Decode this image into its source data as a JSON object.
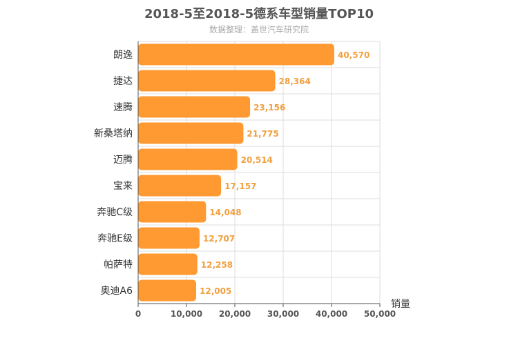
{
  "title": "2018-5至2018-5德系车型销量TOP10",
  "subtitle": "数据整理：盖世汽车研究院",
  "colors": {
    "bar": "#ff9a33",
    "label": "#f0a040",
    "grid": "#dddddd",
    "axis": "#555555"
  },
  "chart_data": {
    "type": "bar",
    "orientation": "horizontal",
    "title": "2018-5至2018-5德系车型销量TOP10",
    "subtitle": "数据整理：盖世汽车研究院",
    "xlabel": "销量",
    "ylabel": "",
    "categories": [
      "朗逸",
      "捷达",
      "速腾",
      "新桑塔纳",
      "迈腾",
      "宝来",
      "奔驰C级",
      "奔驰E级",
      "帕萨特",
      "奥迪A6"
    ],
    "values": [
      40570,
      28364,
      23156,
      21775,
      20514,
      17157,
      14048,
      12707,
      12258,
      12005
    ],
    "value_labels": [
      "40,570",
      "28,364",
      "23,156",
      "21,775",
      "20,514",
      "17,157",
      "14,048",
      "12,707",
      "12,258",
      "12,005"
    ],
    "xlim": [
      0,
      50000
    ],
    "xticks": [
      0,
      10000,
      20000,
      30000,
      40000,
      50000
    ],
    "xtick_labels": [
      "0",
      "10,000",
      "20,000",
      "30,000",
      "40,000",
      "50,000"
    ],
    "grid": true,
    "legend": "none"
  }
}
